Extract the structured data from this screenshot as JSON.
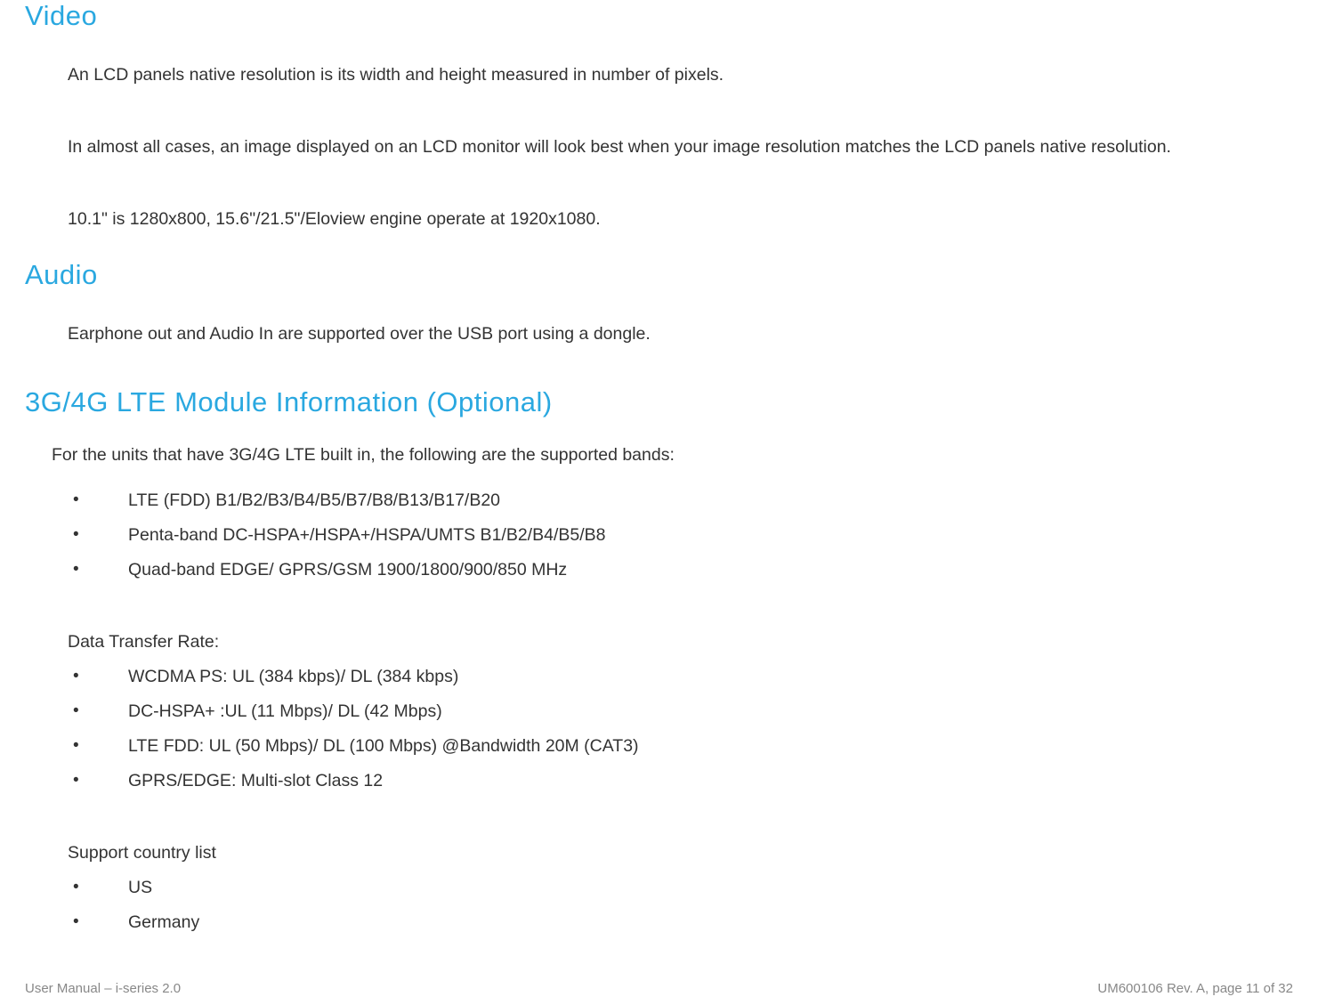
{
  "sections": {
    "video": {
      "heading": "Video",
      "paragraphs": [
        "An LCD panels native resolution is its width and height measured in number of pixels.",
        "In almost all cases, an image displayed on an LCD monitor will look best when your image resolution matches the LCD panels native resolution.",
        "10.1\" is 1280x800, 15.6\"/21.5\"/Eloview engine operate at 1920x1080."
      ]
    },
    "audio": {
      "heading": "Audio",
      "paragraph": "Earphone out and Audio In are supported over the USB port using a dongle."
    },
    "lte": {
      "heading": "3G/4G LTE Module Information (Optional)",
      "intro": "For the units that have 3G/4G LTE built in, the following are the supported bands:",
      "bands": [
        "LTE (FDD) B1/B2/B3/B4/B5/B7/B8/B13/B17/B20",
        "Penta-band DC-HSPA+/HSPA+/HSPA/UMTS B1/B2/B4/B5/B8",
        "Quad-band EDGE/ GPRS/GSM 1900/1800/900/850 MHz"
      ],
      "rate_label": "Data Transfer Rate:",
      "rates": [
        "WCDMA PS: UL (384 kbps)/ DL (384 kbps)",
        "DC-HSPA+ :UL (11 Mbps)/ DL (42 Mbps)",
        "LTE FDD: UL (50 Mbps)/ DL (100 Mbps) @Bandwidth 20M (CAT3)",
        "GPRS/EDGE: Multi-slot Class 12"
      ],
      "country_label": "Support country list",
      "countries": [
        "US",
        "Germany"
      ]
    }
  },
  "footer": {
    "left": "User Manual – i-series 2.0",
    "right": "UM600106 Rev. A, page 11 of 32"
  },
  "colors": {
    "heading": "#2aa8e0",
    "body": "#333333",
    "footer": "#888888",
    "background": "#ffffff"
  },
  "typography": {
    "heading_fontsize_pt": 23,
    "body_fontsize_pt": 15,
    "footer_fontsize_pt": 11,
    "font_family": "Century Gothic"
  }
}
